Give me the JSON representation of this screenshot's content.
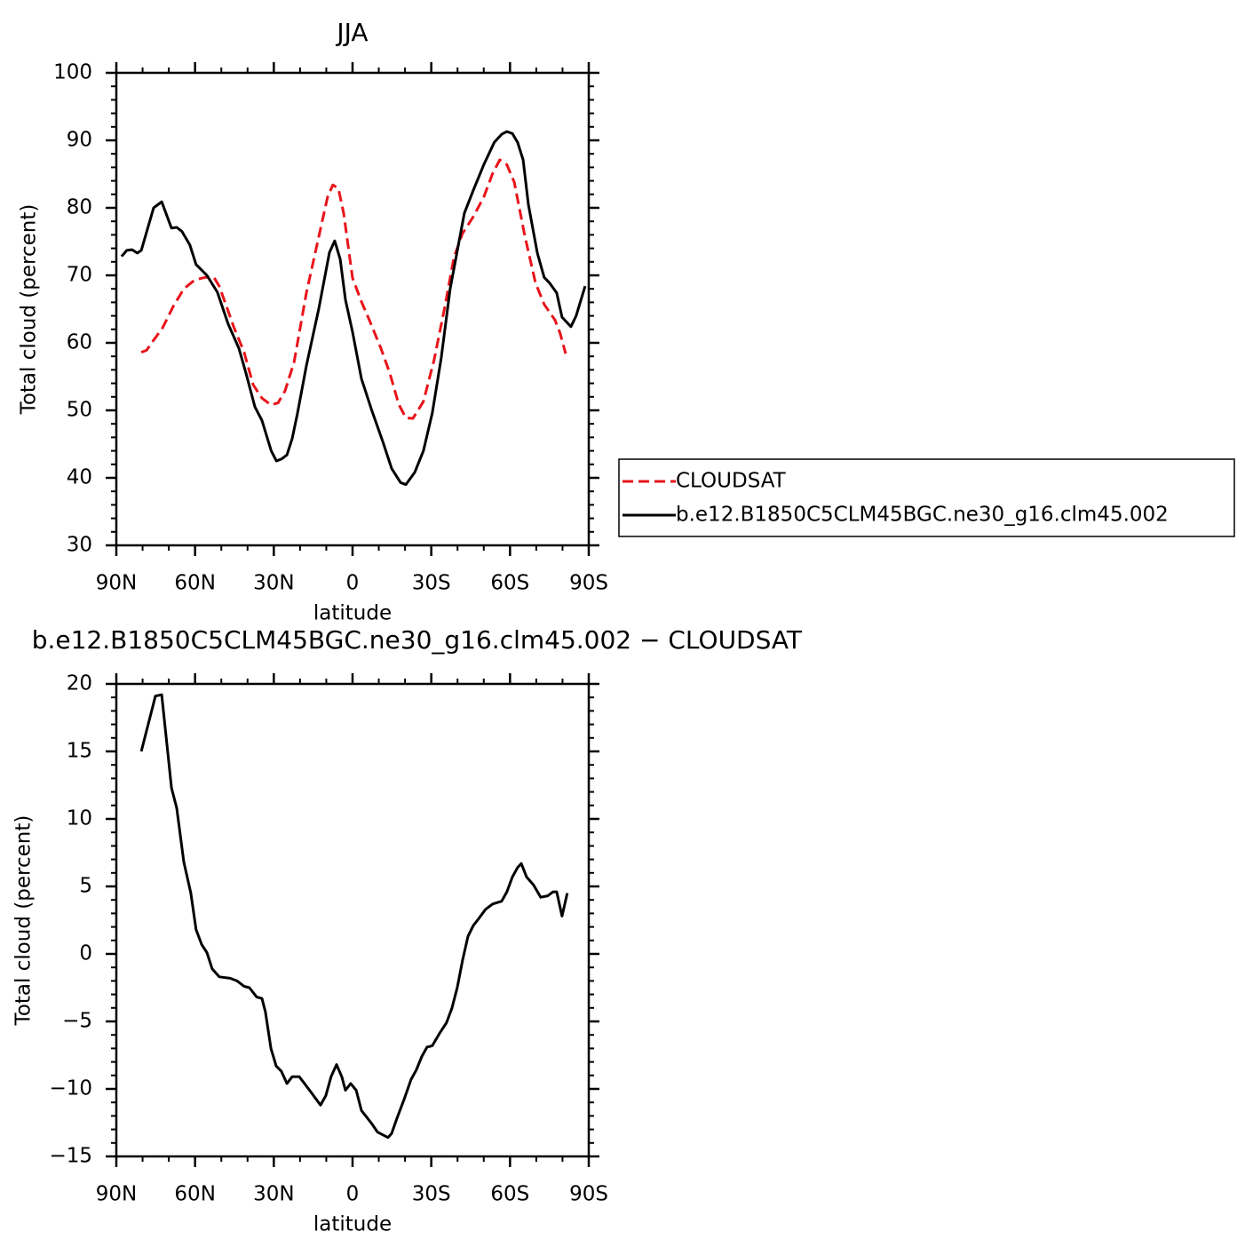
{
  "chart_data": [
    {
      "type": "line",
      "title": "JJA",
      "xlabel": "latitude",
      "ylabel": "Total cloud (percent)",
      "xlim": [
        90,
        -90
      ],
      "xticks": [
        {
          "value": 90,
          "label": "90N"
        },
        {
          "value": 60,
          "label": "60N"
        },
        {
          "value": 30,
          "label": "30N"
        },
        0,
        {
          "value": -30,
          "label": "30S"
        },
        {
          "value": -60,
          "label": "60S"
        },
        {
          "value": -90,
          "label": "90S"
        }
      ],
      "xminorticks": [
        80,
        70,
        50,
        40,
        20,
        10,
        -10,
        -20,
        -40,
        -50,
        -70,
        -80
      ],
      "ylim": [
        30,
        100
      ],
      "yticks": [
        30,
        40,
        50,
        60,
        70,
        80,
        90,
        100
      ],
      "yminorticks": [
        32,
        34,
        36,
        38,
        42,
        44,
        46,
        48,
        52,
        54,
        56,
        58,
        62,
        64,
        66,
        68,
        72,
        74,
        76,
        78,
        82,
        84,
        86,
        88,
        92,
        94,
        96,
        98
      ],
      "legend": "right",
      "series": [
        {
          "name": "CLOUDSAT",
          "color": "#e8141a",
          "dash": true,
          "x": [
            80.5,
            78.5,
            75.8,
            72.4,
            68.3,
            64.3,
            60.2,
            56.2,
            52.8,
            50.8,
            48,
            45.3,
            41.3,
            37.9,
            34.5,
            31.1,
            28.4,
            25.7,
            22.3,
            17.6,
            13.5,
            9.5,
            7.5,
            5.4,
            3.4,
            0,
            -3.4,
            -6.8,
            -10.8,
            -14.2,
            -17.6,
            -20.3,
            -23,
            -27,
            -31.1,
            -35.2,
            -38.6,
            -41.9,
            -46,
            -50,
            -53.4,
            -56.1,
            -58.8,
            -61.6,
            -65.6,
            -69.7,
            -73,
            -77.1,
            -79.1,
            -81.2
          ],
          "values": [
            58.6,
            58.9,
            60.4,
            62.2,
            65.4,
            68,
            69.3,
            69.7,
            69.7,
            68.4,
            65.4,
            62.4,
            58.6,
            53.8,
            51.8,
            50.8,
            51.1,
            52.9,
            57.1,
            67.4,
            74.6,
            81.6,
            83.4,
            82.9,
            79.2,
            69.6,
            66.1,
            63,
            59.2,
            55.5,
            50.9,
            48.9,
            48.8,
            51.3,
            57.5,
            65.4,
            72.6,
            76.2,
            78.7,
            81.6,
            85.1,
            87.1,
            86.4,
            83.8,
            75.9,
            68.9,
            65.7,
            63.4,
            61.4,
            58.4
          ]
        },
        {
          "name": "b.e12.B1850C5CLM45BGC.ne30_g16.clm45.002",
          "color": "#000000",
          "dash": false,
          "x": [
            88,
            86,
            84,
            82,
            80.5,
            75.8,
            72.7,
            69,
            67,
            65,
            62,
            59.6,
            55.5,
            51.5,
            47.4,
            43.3,
            40.6,
            37.2,
            34.5,
            31,
            29,
            27,
            25,
            23,
            21,
            17.6,
            12.9,
            8.8,
            6.8,
            4.7,
            2.7,
            0,
            -3.4,
            -7.4,
            -11.5,
            -14.9,
            -18.3,
            -20.3,
            -23.7,
            -27,
            -30.4,
            -33.8,
            -37.2,
            -42.6,
            -46,
            -50,
            -54,
            -56.8,
            -58.8,
            -60.9,
            -62.9,
            -65,
            -67,
            -70.4,
            -73,
            -75,
            -77.8,
            -79.8,
            -83.2,
            -85.2,
            -88.6
          ],
          "values": [
            72.8,
            73.7,
            73.8,
            73.3,
            73.7,
            80,
            80.9,
            77,
            77.1,
            76.5,
            74.5,
            71.6,
            70,
            67.5,
            62.8,
            59.2,
            55.5,
            50.5,
            48.5,
            44,
            42.5,
            42.8,
            43.4,
            45.8,
            49.5,
            56.6,
            65,
            73.4,
            75.1,
            72.4,
            66.4,
            61.6,
            54.7,
            49.9,
            45.4,
            41.4,
            39.3,
            39,
            40.8,
            44,
            49.6,
            57.8,
            68,
            79.2,
            82.6,
            86.4,
            89.7,
            90.9,
            91.3,
            91,
            89.7,
            87.1,
            80.5,
            73.3,
            69.7,
            68.9,
            67.4,
            63.8,
            62.4,
            64,
            68.4
          ]
        }
      ]
    },
    {
      "type": "line",
      "title": "b.e12.B1850C5CLM45BGC.ne30_g16.clm45.002 − CLOUDSAT",
      "xlabel": "latitude",
      "ylabel": "Total cloud (percent)",
      "xlim": [
        90,
        -90
      ],
      "xticks": [
        {
          "value": 90,
          "label": "90N"
        },
        {
          "value": 60,
          "label": "60N"
        },
        {
          "value": 30,
          "label": "30N"
        },
        0,
        {
          "value": -30,
          "label": "30S"
        },
        {
          "value": -60,
          "label": "60S"
        },
        {
          "value": -90,
          "label": "90S"
        }
      ],
      "xminorticks": [
        80,
        70,
        50,
        40,
        20,
        10,
        -10,
        -20,
        -40,
        -50,
        -70,
        -80
      ],
      "ylim": [
        -15,
        20
      ],
      "yticks": [
        {
          "value": -15,
          "label": "−15"
        },
        {
          "value": -10,
          "label": "−10"
        },
        {
          "value": -5,
          "label": "−5"
        },
        0,
        5,
        10,
        15,
        20
      ],
      "yminorticks": [
        -14,
        -13,
        -12,
        -11,
        -9,
        -8,
        -7,
        -6,
        -4,
        -3,
        -2,
        -1,
        1,
        2,
        3,
        4,
        6,
        7,
        8,
        9,
        11,
        12,
        13,
        14,
        16,
        17,
        18,
        19
      ],
      "color": "#000000",
      "x": [
        80.5,
        75.1,
        72.7,
        69,
        67,
        64.3,
        61.6,
        59.6,
        57.5,
        55.5,
        53.5,
        50.8,
        46.7,
        44,
        41.3,
        39.3,
        36.5,
        34.5,
        33.2,
        31.1,
        29.1,
        27.1,
        25,
        23,
        20.3,
        18.3,
        15.6,
        12.2,
        10.2,
        8.2,
        6.1,
        4.1,
        2.7,
        0.7,
        -1.4,
        -3.4,
        -5.4,
        -7.4,
        -9.5,
        -11.5,
        -13.5,
        -14.9,
        -16.9,
        -19.6,
        -22.3,
        -24.3,
        -26.4,
        -28.4,
        -30.4,
        -33.1,
        -35.8,
        -37.9,
        -39.9,
        -41.9,
        -44,
        -46,
        -48,
        -50.7,
        -53.4,
        -56.8,
        -58.8,
        -60.9,
        -62.9,
        -64.3,
        -66.3,
        -69,
        -71.7,
        -74.4,
        -76.4,
        -77.8,
        -79.8,
        -81.8
      ],
      "values": [
        15,
        19.1,
        19.2,
        12.3,
        10.8,
        6.8,
        4.5,
        1.8,
        0.7,
        0.1,
        -1.1,
        -1.7,
        -1.8,
        -2,
        -2.4,
        -2.5,
        -3.2,
        -3.3,
        -4.3,
        -7,
        -8.3,
        -8.7,
        -9.6,
        -9.1,
        -9.1,
        -9.6,
        -10.3,
        -11.2,
        -10.5,
        -9.1,
        -8.2,
        -9.1,
        -10.1,
        -9.6,
        -10.1,
        -11.6,
        -12.1,
        -12.6,
        -13.2,
        -13.4,
        -13.6,
        -13.3,
        -12.2,
        -10.8,
        -9.3,
        -8.6,
        -7.6,
        -6.9,
        -6.8,
        -5.9,
        -5.1,
        -4,
        -2.5,
        -0.5,
        1.3,
        2.1,
        2.6,
        3.3,
        3.7,
        3.9,
        4.6,
        5.7,
        6.4,
        6.7,
        5.7,
        5.1,
        4.2,
        4.3,
        4.6,
        4.6,
        2.8,
        4.5
      ]
    }
  ]
}
